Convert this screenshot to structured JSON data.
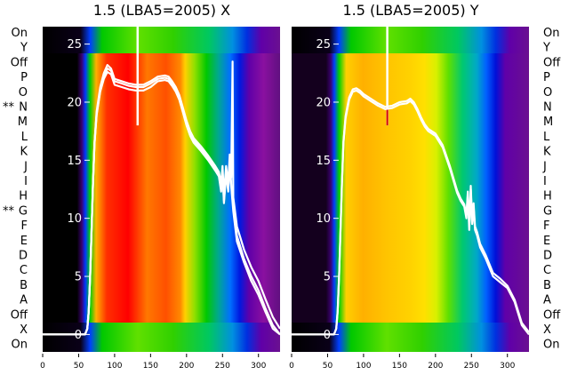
{
  "figure": {
    "row_labels": [
      "On",
      "Y",
      "Off",
      "P",
      "O",
      "N",
      "M",
      "L",
      "K",
      "J",
      "I",
      "H",
      "G",
      "F",
      "E",
      "D",
      "C",
      "B",
      "A",
      "Off",
      "X",
      "On"
    ],
    "row_markers": [
      {
        "row": "N",
        "marker": "**"
      },
      {
        "row": "G",
        "marker": "**"
      }
    ]
  },
  "chart_data": [
    {
      "type": "line",
      "title": "1.5 (LBA5=2005) X",
      "background": "rainbow spectrogram heatmap",
      "xlim": [
        0,
        330
      ],
      "ylim": [
        -1.5,
        26.5
      ],
      "x_ticks": [
        0,
        50,
        100,
        150,
        200,
        250,
        300
      ],
      "y_ticks": [
        0,
        5,
        10,
        15,
        20,
        25
      ],
      "spike": {
        "x": 132,
        "y_from": 18,
        "y_to": 26.5
      },
      "series": [
        {
          "values": [
            [
              0,
              0
            ],
            [
              59,
              0
            ],
            [
              62,
              0.5
            ],
            [
              64,
              2
            ],
            [
              66,
              5
            ],
            [
              68,
              9
            ],
            [
              70,
              13
            ],
            [
              72,
              16.5
            ],
            [
              75,
              19
            ],
            [
              80,
              21
            ],
            [
              85,
              22.2
            ],
            [
              90,
              22.9
            ],
            [
              95,
              22.7
            ],
            [
              100,
              21.8
            ],
            [
              110,
              21.6
            ],
            [
              120,
              21.4
            ],
            [
              130,
              21.3
            ],
            [
              140,
              21.3
            ],
            [
              150,
              21.6
            ],
            [
              160,
              22
            ],
            [
              170,
              22.1
            ],
            [
              175,
              22
            ],
            [
              180,
              21.6
            ],
            [
              185,
              21.1
            ],
            [
              190,
              20.4
            ],
            [
              195,
              19.3
            ],
            [
              200,
              18.2
            ],
            [
              205,
              17.3
            ],
            [
              210,
              16.7
            ],
            [
              220,
              16
            ],
            [
              230,
              15.2
            ],
            [
              240,
              14.3
            ],
            [
              245,
              13.8
            ],
            [
              248,
              12.5
            ],
            [
              250,
              14
            ],
            [
              252,
              11.5
            ],
            [
              255,
              14
            ],
            [
              258,
              12.5
            ],
            [
              260,
              15
            ],
            [
              262,
              13
            ],
            [
              265,
              11
            ],
            [
              270,
              8.5
            ],
            [
              280,
              6.5
            ],
            [
              290,
              5
            ],
            [
              300,
              3.8
            ],
            [
              310,
              2.2
            ],
            [
              320,
              0.8
            ],
            [
              330,
              0
            ]
          ]
        },
        {
          "values": [
            [
              0,
              0
            ],
            [
              59,
              0
            ],
            [
              62,
              0.5
            ],
            [
              64,
              2
            ],
            [
              66,
              5
            ],
            [
              68,
              9
            ],
            [
              70,
              13
            ],
            [
              72,
              16.5
            ],
            [
              75,
              19.2
            ],
            [
              80,
              21.3
            ],
            [
              85,
              22.5
            ],
            [
              90,
              23.2
            ],
            [
              95,
              22.9
            ],
            [
              100,
              22
            ],
            [
              110,
              21.8
            ],
            [
              120,
              21.6
            ],
            [
              130,
              21.5
            ],
            [
              140,
              21.5
            ],
            [
              150,
              21.8
            ],
            [
              160,
              22.2
            ],
            [
              170,
              22.3
            ],
            [
              175,
              22.2
            ],
            [
              180,
              21.8
            ],
            [
              185,
              21.3
            ],
            [
              190,
              20.6
            ],
            [
              195,
              19.5
            ],
            [
              200,
              18.4
            ],
            [
              205,
              17.5
            ],
            [
              210,
              16.9
            ],
            [
              220,
              16.2
            ],
            [
              230,
              15.4
            ],
            [
              240,
              14.5
            ],
            [
              245,
              14
            ],
            [
              248,
              13
            ],
            [
              250,
              14.5
            ],
            [
              252,
              12
            ],
            [
              255,
              14.5
            ],
            [
              258,
              13
            ],
            [
              260,
              15.5
            ],
            [
              262,
              13.5
            ],
            [
              264,
              23.5
            ],
            [
              265,
              11.8
            ],
            [
              270,
              9.3
            ],
            [
              280,
              7.3
            ],
            [
              290,
              5.8
            ],
            [
              300,
              4.6
            ],
            [
              310,
              3
            ],
            [
              320,
              1.5
            ],
            [
              330,
              0.5
            ]
          ]
        },
        {
          "values": [
            [
              0,
              0
            ],
            [
              59,
              0
            ],
            [
              62,
              0.5
            ],
            [
              64,
              2
            ],
            [
              66,
              5
            ],
            [
              68,
              9
            ],
            [
              70,
              13
            ],
            [
              72,
              16.4
            ],
            [
              75,
              18.9
            ],
            [
              80,
              20.9
            ],
            [
              85,
              22
            ],
            [
              90,
              22.6
            ],
            [
              95,
              22.4
            ],
            [
              100,
              21.5
            ],
            [
              110,
              21.3
            ],
            [
              120,
              21.1
            ],
            [
              130,
              21
            ],
            [
              140,
              21
            ],
            [
              150,
              21.3
            ],
            [
              160,
              21.8
            ],
            [
              170,
              21.9
            ],
            [
              175,
              21.8
            ],
            [
              180,
              21.4
            ],
            [
              185,
              20.9
            ],
            [
              190,
              20.2
            ],
            [
              195,
              19.1
            ],
            [
              200,
              18
            ],
            [
              205,
              17.1
            ],
            [
              210,
              16.5
            ],
            [
              220,
              15.8
            ],
            [
              230,
              15
            ],
            [
              240,
              14.1
            ],
            [
              245,
              13.6
            ],
            [
              248,
              12.3
            ],
            [
              250,
              13.8
            ],
            [
              252,
              11.3
            ],
            [
              255,
              13.8
            ],
            [
              258,
              12.3
            ],
            [
              260,
              14.8
            ],
            [
              262,
              12.8
            ],
            [
              265,
              10.6
            ],
            [
              270,
              8
            ],
            [
              280,
              6.2
            ],
            [
              290,
              4.6
            ],
            [
              300,
              3.4
            ],
            [
              310,
              1.9
            ],
            [
              320,
              0.5
            ],
            [
              330,
              0
            ]
          ]
        }
      ]
    },
    {
      "type": "line",
      "title": "1.5 (LBA5=2005) Y",
      "background": "rainbow spectrogram heatmap",
      "xlim": [
        0,
        330
      ],
      "ylim": [
        -1.5,
        26.5
      ],
      "x_ticks": [
        0,
        50,
        100,
        150,
        200,
        250,
        300
      ],
      "y_ticks": [
        0,
        5,
        10,
        15,
        20,
        25
      ],
      "spike": {
        "x": 133,
        "y_from": 18,
        "y_to": 26.5
      },
      "series": [
        {
          "values": [
            [
              0,
              0
            ],
            [
              59,
              0
            ],
            [
              62,
              0.5
            ],
            [
              64,
              2
            ],
            [
              66,
              5
            ],
            [
              68,
              9
            ],
            [
              70,
              13
            ],
            [
              72,
              16.5
            ],
            [
              75,
              18.6
            ],
            [
              80,
              20.2
            ],
            [
              85,
              20.9
            ],
            [
              90,
              21
            ],
            [
              95,
              20.8
            ],
            [
              100,
              20.5
            ],
            [
              110,
              20.1
            ],
            [
              120,
              19.7
            ],
            [
              130,
              19.4
            ],
            [
              140,
              19.5
            ],
            [
              150,
              19.8
            ],
            [
              160,
              19.9
            ],
            [
              165,
              20.1
            ],
            [
              170,
              19.8
            ],
            [
              175,
              19.2
            ],
            [
              180,
              18.5
            ],
            [
              185,
              17.9
            ],
            [
              190,
              17.5
            ],
            [
              200,
              17.1
            ],
            [
              210,
              16.1
            ],
            [
              220,
              14.3
            ],
            [
              230,
              12.2
            ],
            [
              235,
              11.5
            ],
            [
              240,
              11
            ],
            [
              243,
              10
            ],
            [
              245,
              12
            ],
            [
              247,
              9
            ],
            [
              249,
              12.5
            ],
            [
              251,
              9.5
            ],
            [
              253,
              11
            ],
            [
              255,
              9
            ],
            [
              258,
              8.5
            ],
            [
              262,
              7.5
            ],
            [
              270,
              6.5
            ],
            [
              280,
              5
            ],
            [
              290,
              4.5
            ],
            [
              300,
              4
            ],
            [
              310,
              2.8
            ],
            [
              320,
              0.8
            ],
            [
              330,
              0
            ]
          ]
        },
        {
          "values": [
            [
              0,
              0
            ],
            [
              59,
              0
            ],
            [
              62,
              0.5
            ],
            [
              64,
              2
            ],
            [
              66,
              5
            ],
            [
              68,
              9
            ],
            [
              70,
              13
            ],
            [
              72,
              16.6
            ],
            [
              75,
              18.8
            ],
            [
              80,
              20.4
            ],
            [
              85,
              21.1
            ],
            [
              90,
              21.2
            ],
            [
              95,
              21
            ],
            [
              100,
              20.7
            ],
            [
              110,
              20.3
            ],
            [
              120,
              19.9
            ],
            [
              130,
              19.6
            ],
            [
              140,
              19.7
            ],
            [
              150,
              20
            ],
            [
              160,
              20.1
            ],
            [
              165,
              20.3
            ],
            [
              170,
              20
            ],
            [
              175,
              19.4
            ],
            [
              180,
              18.7
            ],
            [
              185,
              18.1
            ],
            [
              190,
              17.7
            ],
            [
              200,
              17.3
            ],
            [
              210,
              16.3
            ],
            [
              220,
              14.5
            ],
            [
              230,
              12.4
            ],
            [
              235,
              11.7
            ],
            [
              240,
              11.2
            ],
            [
              243,
              10.3
            ],
            [
              245,
              12.3
            ],
            [
              247,
              9.3
            ],
            [
              249,
              12.8
            ],
            [
              251,
              9.8
            ],
            [
              253,
              11.3
            ],
            [
              255,
              9.3
            ],
            [
              258,
              8.8
            ],
            [
              262,
              7.8
            ],
            [
              270,
              6.8
            ],
            [
              280,
              5.3
            ],
            [
              290,
              4.8
            ],
            [
              300,
              4.2
            ],
            [
              310,
              3
            ],
            [
              320,
              1
            ],
            [
              330,
              0.2
            ]
          ]
        }
      ]
    }
  ]
}
